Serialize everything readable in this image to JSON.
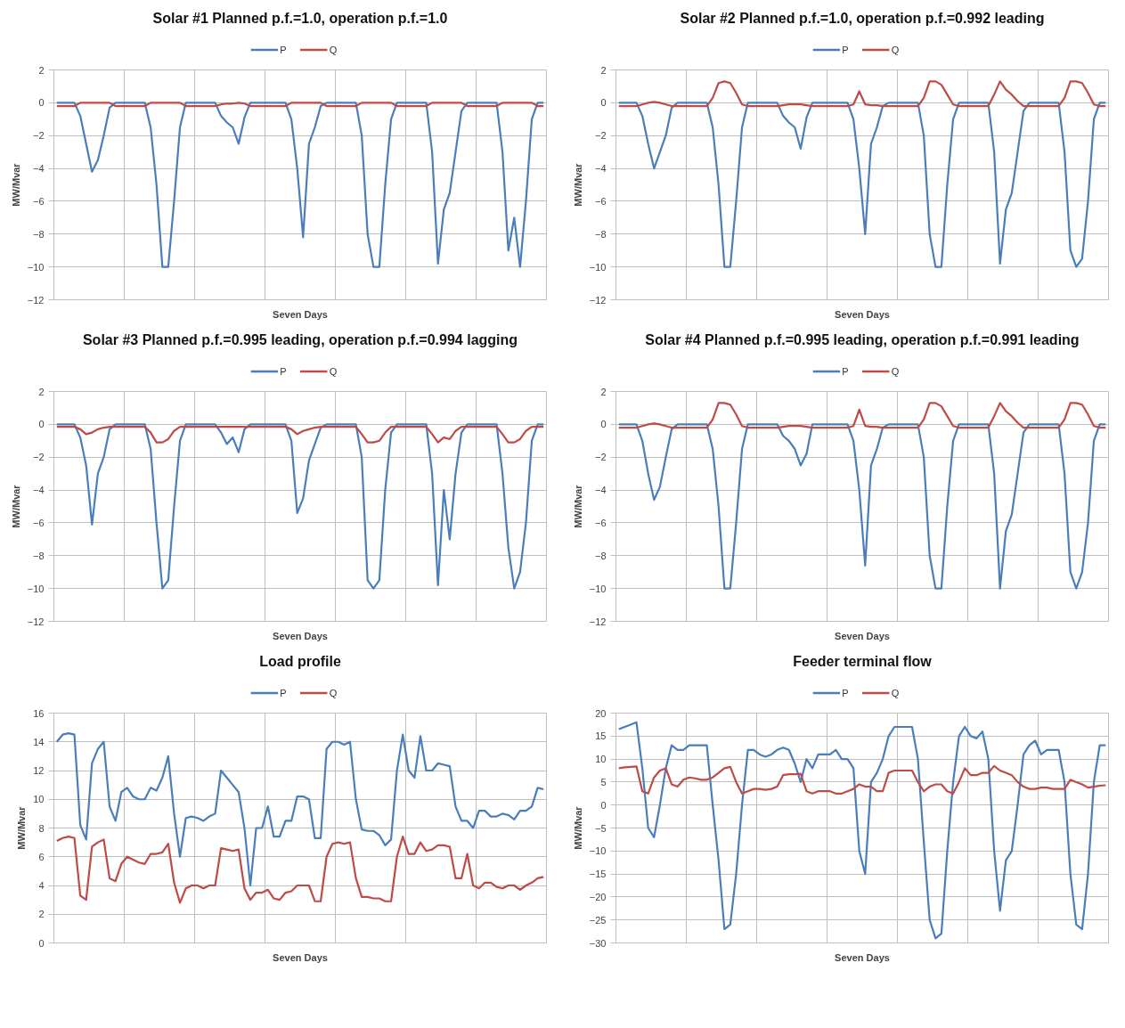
{
  "chart_data": [
    {
      "type": "line",
      "title": "Solar #1 Planned p.f.=1.0, operation p.f.=1.0",
      "xlabel": "Seven Days",
      "ylabel": "MW/Mvar",
      "ylim": [
        -12,
        2
      ],
      "yticks": [
        -12,
        -10,
        -8,
        -6,
        -4,
        -2,
        0,
        2
      ],
      "grid": true,
      "legend": "top",
      "tick_labels": "y",
      "categories": [
        null,
        null,
        null,
        null,
        null,
        null,
        null,
        null,
        null,
        null,
        null,
        null,
        null,
        null,
        null,
        null,
        null,
        null,
        null,
        null,
        null,
        null,
        null,
        null,
        null,
        null,
        null,
        null,
        null,
        null,
        null,
        null,
        null,
        null,
        null,
        null,
        null,
        null,
        null,
        null,
        null,
        null,
        null,
        null,
        null,
        null,
        null,
        null,
        null,
        null,
        null,
        null,
        null,
        null,
        null,
        null,
        null,
        null,
        null,
        null,
        null,
        null,
        null,
        null,
        null,
        null,
        null,
        null,
        null,
        null,
        null,
        null,
        null,
        null,
        null,
        null,
        null,
        null,
        null,
        null,
        null,
        null,
        null,
        null
      ],
      "series": [
        {
          "name": "P",
          "color": "#4a7ebb",
          "values": [
            0,
            0,
            0,
            0,
            -0.8,
            -2.5,
            -4.2,
            -3.5,
            -2,
            -0.3,
            0,
            0,
            0,
            0,
            0,
            0,
            -1.5,
            -5,
            -10,
            -10,
            -6,
            -1.5,
            0,
            0,
            0,
            0,
            0,
            0,
            -0.8,
            -1.2,
            -1.5,
            -2.5,
            -0.9,
            0,
            0,
            0,
            0,
            0,
            0,
            0,
            -1,
            -4,
            -8.2,
            -2.5,
            -1.5,
            -0.2,
            0,
            0,
            0,
            0,
            0,
            0,
            -2,
            -8,
            -10,
            -10,
            -5,
            -1,
            0,
            0,
            0,
            0,
            0,
            0,
            -3,
            -9.8,
            -6.5,
            -5.5,
            -3,
            -0.5,
            0,
            0,
            0,
            0,
            0,
            0,
            -3,
            -9,
            -7,
            -10,
            -6,
            -1,
            0,
            0
          ]
        },
        {
          "name": "Q",
          "color": "#be4b48",
          "values": [
            -0.2,
            -0.2,
            -0.2,
            -0.2,
            0,
            0,
            0,
            0,
            0,
            0,
            -0.2,
            -0.2,
            -0.2,
            -0.2,
            -0.2,
            -0.2,
            0,
            0,
            0,
            0,
            0,
            0,
            -0.2,
            -0.2,
            -0.2,
            -0.2,
            -0.2,
            -0.2,
            -0.1,
            -0.05,
            -0.05,
            0,
            -0.05,
            -0.2,
            -0.2,
            -0.2,
            -0.2,
            -0.2,
            -0.2,
            -0.2,
            0,
            0,
            0,
            0,
            0,
            0,
            -0.2,
            -0.2,
            -0.2,
            -0.2,
            -0.2,
            -0.2,
            0,
            0,
            0,
            0,
            0,
            0,
            -0.2,
            -0.2,
            -0.2,
            -0.2,
            -0.2,
            -0.2,
            0,
            0,
            0,
            0,
            0,
            0,
            -0.2,
            -0.2,
            -0.2,
            -0.2,
            -0.2,
            -0.2,
            0,
            0,
            0,
            0,
            0,
            0,
            -0.2,
            -0.2
          ]
        }
      ]
    },
    {
      "type": "line",
      "title": "Solar #2 Planned p.f.=1.0, operation p.f.=0.992 leading",
      "xlabel": "Seven Days",
      "ylabel": "MW/Mvar",
      "ylim": [
        -12,
        2
      ],
      "yticks": [
        -12,
        -10,
        -8,
        -6,
        -4,
        -2,
        0,
        2
      ],
      "grid": true,
      "legend": "top",
      "tick_labels": "y",
      "categories": [
        null,
        null,
        null,
        null,
        null,
        null,
        null,
        null,
        null,
        null,
        null,
        null,
        null,
        null,
        null,
        null,
        null,
        null,
        null,
        null,
        null,
        null,
        null,
        null,
        null,
        null,
        null,
        null,
        null,
        null,
        null,
        null,
        null,
        null,
        null,
        null,
        null,
        null,
        null,
        null,
        null,
        null,
        null,
        null,
        null,
        null,
        null,
        null,
        null,
        null,
        null,
        null,
        null,
        null,
        null,
        null,
        null,
        null,
        null,
        null,
        null,
        null,
        null,
        null,
        null,
        null,
        null,
        null,
        null,
        null,
        null,
        null,
        null,
        null,
        null,
        null,
        null,
        null,
        null,
        null,
        null,
        null,
        null,
        null
      ],
      "series": [
        {
          "name": "P",
          "color": "#4a7ebb",
          "values": [
            0,
            0,
            0,
            0,
            -0.8,
            -2.5,
            -4,
            -3,
            -2,
            -0.3,
            0,
            0,
            0,
            0,
            0,
            0,
            -1.5,
            -5,
            -10,
            -10,
            -6,
            -1.5,
            0,
            0,
            0,
            0,
            0,
            0,
            -0.8,
            -1.2,
            -1.5,
            -2.8,
            -0.9,
            0,
            0,
            0,
            0,
            0,
            0,
            0,
            -1,
            -4,
            -8,
            -2.5,
            -1.5,
            -0.2,
            0,
            0,
            0,
            0,
            0,
            0,
            -2,
            -8,
            -10,
            -10,
            -5,
            -1,
            0,
            0,
            0,
            0,
            0,
            0,
            -3,
            -9.8,
            -6.5,
            -5.5,
            -3,
            -0.5,
            0,
            0,
            0,
            0,
            0,
            0,
            -3,
            -9,
            -10,
            -9.5,
            -6,
            -1,
            0,
            0
          ]
        },
        {
          "name": "Q",
          "color": "#be4b48",
          "values": [
            -0.2,
            -0.2,
            -0.2,
            -0.2,
            -0.1,
            0,
            0.05,
            0,
            -0.1,
            -0.2,
            -0.2,
            -0.2,
            -0.2,
            -0.2,
            -0.2,
            -0.2,
            0.3,
            1.2,
            1.3,
            1.2,
            0.6,
            -0.1,
            -0.2,
            -0.2,
            -0.2,
            -0.2,
            -0.2,
            -0.2,
            -0.15,
            -0.1,
            -0.1,
            -0.1,
            -0.15,
            -0.2,
            -0.2,
            -0.2,
            -0.2,
            -0.2,
            -0.2,
            -0.2,
            -0.1,
            0.7,
            -0.1,
            -0.15,
            -0.15,
            -0.2,
            -0.2,
            -0.2,
            -0.2,
            -0.2,
            -0.2,
            -0.2,
            0.3,
            1.3,
            1.3,
            1.1,
            0.5,
            -0.1,
            -0.2,
            -0.2,
            -0.2,
            -0.2,
            -0.2,
            -0.2,
            0.5,
            1.3,
            0.8,
            0.5,
            0.1,
            -0.2,
            -0.2,
            -0.2,
            -0.2,
            -0.2,
            -0.2,
            -0.2,
            0.3,
            1.3,
            1.3,
            1.2,
            0.6,
            -0.1,
            -0.2,
            -0.2
          ]
        }
      ]
    },
    {
      "type": "line",
      "title": "Solar #3 Planned p.f.=0.995 leading, operation p.f.=0.994 lagging",
      "xlabel": "Seven Days",
      "ylabel": "MW/Mvar",
      "ylim": [
        -12,
        2
      ],
      "yticks": [
        -12,
        -10,
        -8,
        -6,
        -4,
        -2,
        0,
        2
      ],
      "grid": true,
      "legend": "top",
      "tick_labels": "y",
      "categories": [
        null,
        null,
        null,
        null,
        null,
        null,
        null,
        null,
        null,
        null,
        null,
        null,
        null,
        null,
        null,
        null,
        null,
        null,
        null,
        null,
        null,
        null,
        null,
        null,
        null,
        null,
        null,
        null,
        null,
        null,
        null,
        null,
        null,
        null,
        null,
        null,
        null,
        null,
        null,
        null,
        null,
        null,
        null,
        null,
        null,
        null,
        null,
        null,
        null,
        null,
        null,
        null,
        null,
        null,
        null,
        null,
        null,
        null,
        null,
        null,
        null,
        null,
        null,
        null,
        null,
        null,
        null,
        null,
        null,
        null,
        null,
        null,
        null,
        null,
        null,
        null,
        null,
        null,
        null,
        null,
        null,
        null,
        null,
        null
      ],
      "series": [
        {
          "name": "P",
          "color": "#4a7ebb",
          "values": [
            0,
            0,
            0,
            0,
            -0.8,
            -2.5,
            -6.1,
            -3,
            -2,
            -0.3,
            0,
            0,
            0,
            0,
            0,
            0,
            -1.5,
            -6,
            -10,
            -9.5,
            -5,
            -1,
            0,
            0,
            0,
            0,
            0,
            0,
            -0.5,
            -1.2,
            -0.8,
            -1.7,
            -0.3,
            0,
            0,
            0,
            0,
            0,
            0,
            0,
            -1,
            -5.4,
            -4.5,
            -2.2,
            -1.2,
            -0.2,
            0,
            0,
            0,
            0,
            0,
            0,
            -2,
            -9.5,
            -10,
            -9.5,
            -4,
            -0.5,
            0,
            0,
            0,
            0,
            0,
            0,
            -3,
            -9.8,
            -4,
            -7,
            -3,
            -0.5,
            0,
            0,
            0,
            0,
            0,
            0,
            -3,
            -7.5,
            -10,
            -9,
            -6,
            -1,
            0,
            0
          ]
        },
        {
          "name": "Q",
          "color": "#be4b48",
          "values": [
            -0.15,
            -0.15,
            -0.15,
            -0.15,
            -0.3,
            -0.6,
            -0.5,
            -0.3,
            -0.2,
            -0.15,
            -0.15,
            -0.15,
            -0.15,
            -0.15,
            -0.15,
            -0.15,
            -0.5,
            -1.1,
            -1.1,
            -0.9,
            -0.4,
            -0.15,
            -0.15,
            -0.15,
            -0.15,
            -0.15,
            -0.15,
            -0.15,
            -0.15,
            -0.15,
            -0.15,
            -0.15,
            -0.15,
            -0.15,
            -0.15,
            -0.15,
            -0.15,
            -0.15,
            -0.15,
            -0.15,
            -0.3,
            -0.6,
            -0.4,
            -0.3,
            -0.2,
            -0.15,
            -0.15,
            -0.15,
            -0.15,
            -0.15,
            -0.15,
            -0.15,
            -0.6,
            -1.1,
            -1.1,
            -1,
            -0.5,
            -0.15,
            -0.15,
            -0.15,
            -0.15,
            -0.15,
            -0.15,
            -0.15,
            -0.6,
            -1.1,
            -0.8,
            -0.9,
            -0.4,
            -0.15,
            -0.15,
            -0.15,
            -0.15,
            -0.15,
            -0.15,
            -0.15,
            -0.6,
            -1.1,
            -1.1,
            -0.9,
            -0.4,
            -0.15,
            -0.15,
            -0.15
          ]
        }
      ]
    },
    {
      "type": "line",
      "title": "Solar #4 Planned p.f.=0.995 leading, operation p.f.=0.991 leading",
      "xlabel": "Seven Days",
      "ylabel": "MW/Mvar",
      "ylim": [
        -12,
        2
      ],
      "yticks": [
        -12,
        -10,
        -8,
        -6,
        -4,
        -2,
        0,
        2
      ],
      "grid": true,
      "legend": "top",
      "tick_labels": "y",
      "categories": [
        null,
        null,
        null,
        null,
        null,
        null,
        null,
        null,
        null,
        null,
        null,
        null,
        null,
        null,
        null,
        null,
        null,
        null,
        null,
        null,
        null,
        null,
        null,
        null,
        null,
        null,
        null,
        null,
        null,
        null,
        null,
        null,
        null,
        null,
        null,
        null,
        null,
        null,
        null,
        null,
        null,
        null,
        null,
        null,
        null,
        null,
        null,
        null,
        null,
        null,
        null,
        null,
        null,
        null,
        null,
        null,
        null,
        null,
        null,
        null,
        null,
        null,
        null,
        null,
        null,
        null,
        null,
        null,
        null,
        null,
        null,
        null,
        null,
        null,
        null,
        null,
        null,
        null,
        null,
        null,
        null,
        null,
        null,
        null
      ],
      "series": [
        {
          "name": "P",
          "color": "#4a7ebb",
          "values": [
            0,
            0,
            0,
            0,
            -1,
            -3,
            -4.6,
            -3.8,
            -2,
            -0.3,
            0,
            0,
            0,
            0,
            0,
            0,
            -1.5,
            -5,
            -10,
            -10,
            -6,
            -1.5,
            0,
            0,
            0,
            0,
            0,
            0,
            -0.7,
            -1,
            -1.5,
            -2.5,
            -1.8,
            0,
            0,
            0,
            0,
            0,
            0,
            0,
            -1,
            -4,
            -8.6,
            -2.5,
            -1.5,
            -0.2,
            0,
            0,
            0,
            0,
            0,
            0,
            -2,
            -8,
            -10,
            -10,
            -5,
            -1,
            0,
            0,
            0,
            0,
            0,
            0,
            -3,
            -10,
            -6.5,
            -5.5,
            -3,
            -0.5,
            0,
            0,
            0,
            0,
            0,
            0,
            -3,
            -9,
            -10,
            -9,
            -6,
            -1,
            0,
            0
          ]
        },
        {
          "name": "Q",
          "color": "#be4b48",
          "values": [
            -0.2,
            -0.2,
            -0.2,
            -0.2,
            -0.1,
            0,
            0.05,
            0,
            -0.1,
            -0.2,
            -0.2,
            -0.2,
            -0.2,
            -0.2,
            -0.2,
            -0.2,
            0.3,
            1.3,
            1.3,
            1.2,
            0.6,
            -0.1,
            -0.2,
            -0.2,
            -0.2,
            -0.2,
            -0.2,
            -0.2,
            -0.15,
            -0.1,
            -0.1,
            -0.1,
            -0.15,
            -0.2,
            -0.2,
            -0.2,
            -0.2,
            -0.2,
            -0.2,
            -0.2,
            -0.1,
            0.9,
            -0.1,
            -0.15,
            -0.15,
            -0.2,
            -0.2,
            -0.2,
            -0.2,
            -0.2,
            -0.2,
            -0.2,
            0.3,
            1.3,
            1.3,
            1.1,
            0.5,
            -0.1,
            -0.2,
            -0.2,
            -0.2,
            -0.2,
            -0.2,
            -0.2,
            0.5,
            1.3,
            0.8,
            0.5,
            0.1,
            -0.2,
            -0.2,
            -0.2,
            -0.2,
            -0.2,
            -0.2,
            -0.2,
            0.3,
            1.3,
            1.3,
            1.2,
            0.6,
            -0.1,
            -0.2,
            -0.2
          ]
        }
      ]
    },
    {
      "type": "line",
      "title": "Load profile",
      "xlabel": "Seven Days",
      "ylabel": "MW/Mvar",
      "ylim": [
        0,
        16
      ],
      "yticks": [
        0,
        2,
        4,
        6,
        8,
        10,
        12,
        14,
        16
      ],
      "grid": true,
      "legend": "top",
      "tick_labels": "y",
      "categories": [
        null,
        null,
        null,
        null,
        null,
        null,
        null,
        null,
        null,
        null,
        null,
        null,
        null,
        null,
        null,
        null,
        null,
        null,
        null,
        null,
        null,
        null,
        null,
        null,
        null,
        null,
        null,
        null,
        null,
        null,
        null,
        null,
        null,
        null,
        null,
        null,
        null,
        null,
        null,
        null,
        null,
        null,
        null,
        null,
        null,
        null,
        null,
        null,
        null,
        null,
        null,
        null,
        null,
        null,
        null,
        null,
        null,
        null,
        null,
        null,
        null,
        null,
        null,
        null,
        null,
        null,
        null,
        null,
        null,
        null,
        null,
        null,
        null,
        null,
        null,
        null,
        null,
        null,
        null,
        null,
        null,
        null,
        null,
        null
      ],
      "series": [
        {
          "name": "P",
          "color": "#4a7ebb",
          "values": [
            14,
            14.5,
            14.6,
            14.5,
            8.2,
            7.2,
            12.5,
            13.5,
            14,
            9.5,
            8.5,
            10.5,
            10.8,
            10.2,
            10,
            10,
            10.8,
            10.6,
            11.5,
            13,
            9,
            6,
            8.7,
            8.8,
            8.7,
            8.5,
            8.8,
            9,
            12,
            11.5,
            11,
            10.5,
            8,
            4,
            8,
            8,
            9.5,
            7.4,
            7.4,
            8.5,
            8.5,
            10.2,
            10.2,
            10,
            7.3,
            7.3,
            13.5,
            14,
            14,
            13.8,
            14,
            10,
            7.9,
            7.8,
            7.8,
            7.5,
            6.8,
            7.2,
            12,
            14.5,
            12,
            11.5,
            14.4,
            12,
            12,
            12.5,
            12.4,
            12.3,
            9.5,
            8.5,
            8.5,
            8,
            9.2,
            9.2,
            8.8,
            8.8,
            9,
            8.9,
            8.6,
            9.2,
            9.2,
            9.5,
            10.8,
            10.7
          ]
        },
        {
          "name": "Q",
          "color": "#be4b48",
          "values": [
            7.1,
            7.3,
            7.4,
            7.3,
            3.3,
            3,
            6.7,
            7,
            7.2,
            4.5,
            4.3,
            5.5,
            6,
            5.8,
            5.6,
            5.5,
            6.2,
            6.2,
            6.3,
            6.9,
            4.2,
            2.8,
            3.8,
            4,
            4,
            3.8,
            4,
            4,
            6.6,
            6.5,
            6.4,
            6.5,
            3.8,
            3,
            3.5,
            3.5,
            3.7,
            3.1,
            3,
            3.5,
            3.6,
            4,
            4,
            4,
            2.9,
            2.9,
            6,
            6.9,
            7,
            6.9,
            7,
            4.5,
            3.2,
            3.2,
            3.1,
            3.1,
            2.9,
            2.9,
            6,
            7.4,
            6.2,
            6.2,
            7,
            6.4,
            6.5,
            6.8,
            6.8,
            6.7,
            4.5,
            4.5,
            6.2,
            4,
            3.8,
            4.2,
            4.2,
            3.9,
            3.8,
            4,
            4,
            3.7,
            4,
            4.2,
            4.5,
            4.6
          ]
        }
      ]
    },
    {
      "type": "line",
      "title": "Feeder terminal flow",
      "xlabel": "Seven Days",
      "ylabel": "MW/Mvar",
      "ylim": [
        -30,
        20
      ],
      "yticks": [
        -30,
        -25,
        -20,
        -15,
        -10,
        -5,
        0,
        5,
        10,
        15,
        20
      ],
      "grid": true,
      "legend": "top",
      "tick_labels": "y",
      "categories": [
        null,
        null,
        null,
        null,
        null,
        null,
        null,
        null,
        null,
        null,
        null,
        null,
        null,
        null,
        null,
        null,
        null,
        null,
        null,
        null,
        null,
        null,
        null,
        null,
        null,
        null,
        null,
        null,
        null,
        null,
        null,
        null,
        null,
        null,
        null,
        null,
        null,
        null,
        null,
        null,
        null,
        null,
        null,
        null,
        null,
        null,
        null,
        null,
        null,
        null,
        null,
        null,
        null,
        null,
        null,
        null,
        null,
        null,
        null,
        null,
        null,
        null,
        null,
        null,
        null,
        null,
        null,
        null,
        null,
        null,
        null,
        null,
        null,
        null,
        null,
        null,
        null,
        null,
        null,
        null,
        null,
        null,
        null,
        null
      ],
      "series": [
        {
          "name": "P",
          "color": "#4a7ebb",
          "values": [
            16.5,
            17,
            17.5,
            18,
            8,
            -5,
            -7,
            0,
            8,
            13,
            12,
            12,
            13,
            13,
            13,
            13,
            0,
            -12,
            -27,
            -26,
            -15,
            0,
            12,
            12,
            11,
            10.5,
            11,
            12,
            12.5,
            12,
            9,
            5,
            10,
            8,
            11,
            11,
            11,
            12,
            10,
            10,
            8,
            -10,
            -15,
            5,
            7,
            10,
            15,
            17,
            17,
            17,
            17,
            10,
            -8,
            -25,
            -29,
            -28,
            -10,
            5,
            15,
            17,
            15,
            14.5,
            16,
            10,
            -10,
            -23,
            -12,
            -10,
            0,
            11,
            13,
            14,
            11,
            12,
            12,
            12,
            5,
            -15,
            -26,
            -27,
            -15,
            5,
            13,
            13
          ]
        },
        {
          "name": "Q",
          "color": "#be4b48",
          "values": [
            8,
            8.2,
            8.3,
            8.4,
            3,
            2.5,
            6,
            7.5,
            8,
            4.5,
            4,
            5.5,
            6,
            5.8,
            5.5,
            5.5,
            6,
            7,
            8,
            8.3,
            5,
            2.5,
            3,
            3.5,
            3.5,
            3.3,
            3.5,
            4,
            6.5,
            6.7,
            6.7,
            6.8,
            3,
            2.5,
            3,
            3,
            3,
            2.5,
            2.5,
            3,
            3.5,
            4.5,
            4,
            4,
            3,
            3,
            7,
            7.5,
            7.5,
            7.5,
            7.5,
            5,
            3,
            4,
            4.5,
            4.5,
            3,
            2.5,
            5,
            8,
            6.5,
            6.5,
            7,
            7,
            8.5,
            7.5,
            7,
            6.5,
            5,
            4,
            3.5,
            3.5,
            3.8,
            3.8,
            3.5,
            3.5,
            3.5,
            5.5,
            5,
            4.5,
            3.8,
            4,
            4.2,
            4.3
          ]
        }
      ]
    }
  ]
}
